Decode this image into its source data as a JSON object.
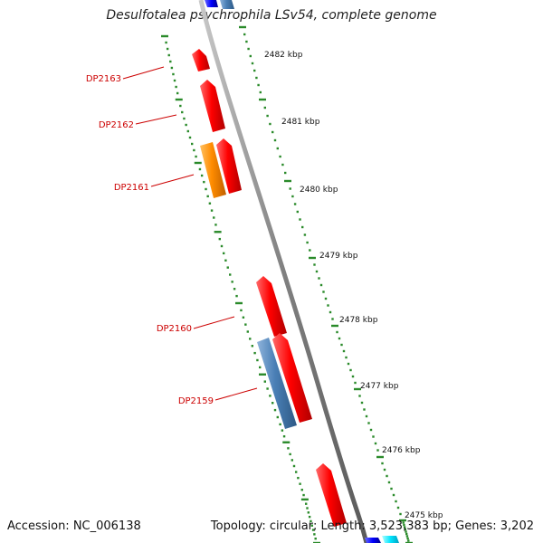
{
  "title": "Desulfotalea psychrophila LSv54, complete genome",
  "footer": {
    "accession": "Accession: NC_006138",
    "summary": "Topology: circular; Length: 3,523,383 bp; Genes: 3,202"
  },
  "colors": {
    "backbone": "#888888",
    "tick": "#2a8a2a",
    "label_red": "#cc0000",
    "forward_gene": "#ff0000",
    "reverse_gene": "#4a7fb5",
    "orange_gene": "#ff8c00",
    "blue_gene": "#0000ff",
    "cyan_gene": "#00e5ff"
  },
  "kbp_labels": [
    "2482 kbp",
    "2481 kbp",
    "2480 kbp",
    "2479 kbp",
    "2478 kbp",
    "2477 kbp",
    "2476 kbp",
    "2475 kbp"
  ],
  "gene_labels": [
    "DP2163",
    "DP2162",
    "DP2161",
    "DP2160",
    "DP2159"
  ]
}
